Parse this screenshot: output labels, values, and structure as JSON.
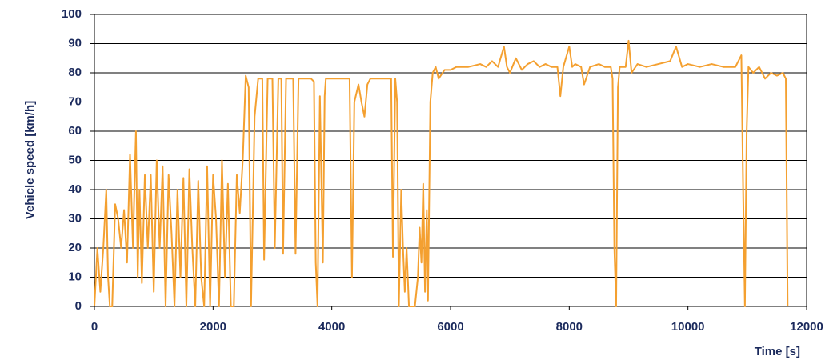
{
  "chart_data": {
    "type": "line",
    "xlabel": "Time [s]",
    "ylabel": "Vehicle speed [km/h]",
    "x": [
      0,
      50,
      100,
      150,
      200,
      230,
      260,
      300,
      350,
      400,
      450,
      500,
      550,
      600,
      650,
      680,
      700,
      730,
      760,
      800,
      850,
      900,
      950,
      1000,
      1050,
      1100,
      1150,
      1200,
      1250,
      1300,
      1350,
      1400,
      1450,
      1500,
      1550,
      1600,
      1650,
      1700,
      1750,
      1800,
      1850,
      1900,
      1950,
      2000,
      2050,
      2100,
      2150,
      2200,
      2250,
      2300,
      2350,
      2400,
      2450,
      2500,
      2550,
      2600,
      2640,
      2700,
      2760,
      2830,
      2860,
      2920,
      3000,
      3040,
      3100,
      3150,
      3180,
      3230,
      3300,
      3350,
      3390,
      3440,
      3550,
      3650,
      3700,
      3730,
      3760,
      3800,
      3850,
      3880,
      3900,
      4000,
      4100,
      4200,
      4300,
      4340,
      4380,
      4450,
      4500,
      4550,
      4600,
      4650,
      4750,
      4850,
      4950,
      5000,
      5030,
      5070,
      5100,
      5130,
      5170,
      5200,
      5230,
      5260,
      5300,
      5400,
      5450,
      5480,
      5510,
      5540,
      5570,
      5600,
      5620,
      5660,
      5700,
      5750,
      5800,
      5900,
      6000,
      6100,
      6200,
      6300,
      6500,
      6600,
      6700,
      6800,
      6900,
      6950,
      7000,
      7100,
      7200,
      7300,
      7400,
      7500,
      7600,
      7700,
      7800,
      7850,
      7900,
      8000,
      8050,
      8100,
      8200,
      8250,
      8350,
      8500,
      8600,
      8700,
      8730,
      8760,
      8790,
      8820,
      8850,
      8950,
      9000,
      9050,
      9150,
      9300,
      9500,
      9700,
      9800,
      9900,
      10000,
      10200,
      10400,
      10600,
      10800,
      10900,
      10930,
      10960,
      10990,
      11020,
      11100,
      11200,
      11300,
      11400,
      11500,
      11600,
      11650,
      11680
    ],
    "values": [
      0,
      20,
      5,
      20,
      40,
      10,
      0,
      0,
      35,
      30,
      20,
      33,
      15,
      52,
      20,
      45,
      60,
      10,
      40,
      8,
      45,
      20,
      45,
      5,
      50,
      20,
      48,
      0,
      45,
      25,
      0,
      40,
      10,
      44,
      0,
      47,
      20,
      0,
      43,
      10,
      0,
      48,
      0,
      45,
      30,
      0,
      50,
      10,
      42,
      0,
      0,
      45,
      32,
      50,
      79,
      75,
      0,
      65,
      78,
      78,
      16,
      78,
      78,
      20,
      78,
      78,
      18,
      78,
      78,
      78,
      18,
      78,
      78,
      78,
      77,
      15,
      0,
      72,
      15,
      72,
      78,
      78,
      78,
      78,
      78,
      10,
      70,
      76,
      70,
      65,
      76,
      78,
      78,
      78,
      78,
      78,
      17,
      78,
      70,
      0,
      40,
      20,
      5,
      20,
      0,
      0,
      10,
      27,
      15,
      42,
      5,
      33,
      2,
      70,
      80,
      82,
      78,
      81,
      81,
      82,
      82,
      82,
      83,
      82,
      84,
      82,
      89,
      82,
      80,
      85,
      81,
      83,
      84,
      82,
      83,
      82,
      82,
      72,
      82,
      89,
      82,
      83,
      82,
      76,
      82,
      83,
      82,
      82,
      78,
      20,
      0,
      75,
      82,
      82,
      91,
      80,
      83,
      82,
      83,
      84,
      89,
      82,
      83,
      82,
      83,
      82,
      82,
      86,
      40,
      0,
      60,
      82,
      80,
      82,
      78,
      80,
      79,
      80,
      78,
      0
    ],
    "color": "#f4a030",
    "xlim": [
      0,
      12000
    ],
    "xticks": [
      0,
      2000,
      4000,
      6000,
      8000,
      10000,
      12000
    ],
    "ylim": [
      0,
      100
    ],
    "yticks": [
      0,
      10,
      20,
      30,
      40,
      50,
      60,
      70,
      80,
      90,
      100
    ],
    "grid": true
  }
}
